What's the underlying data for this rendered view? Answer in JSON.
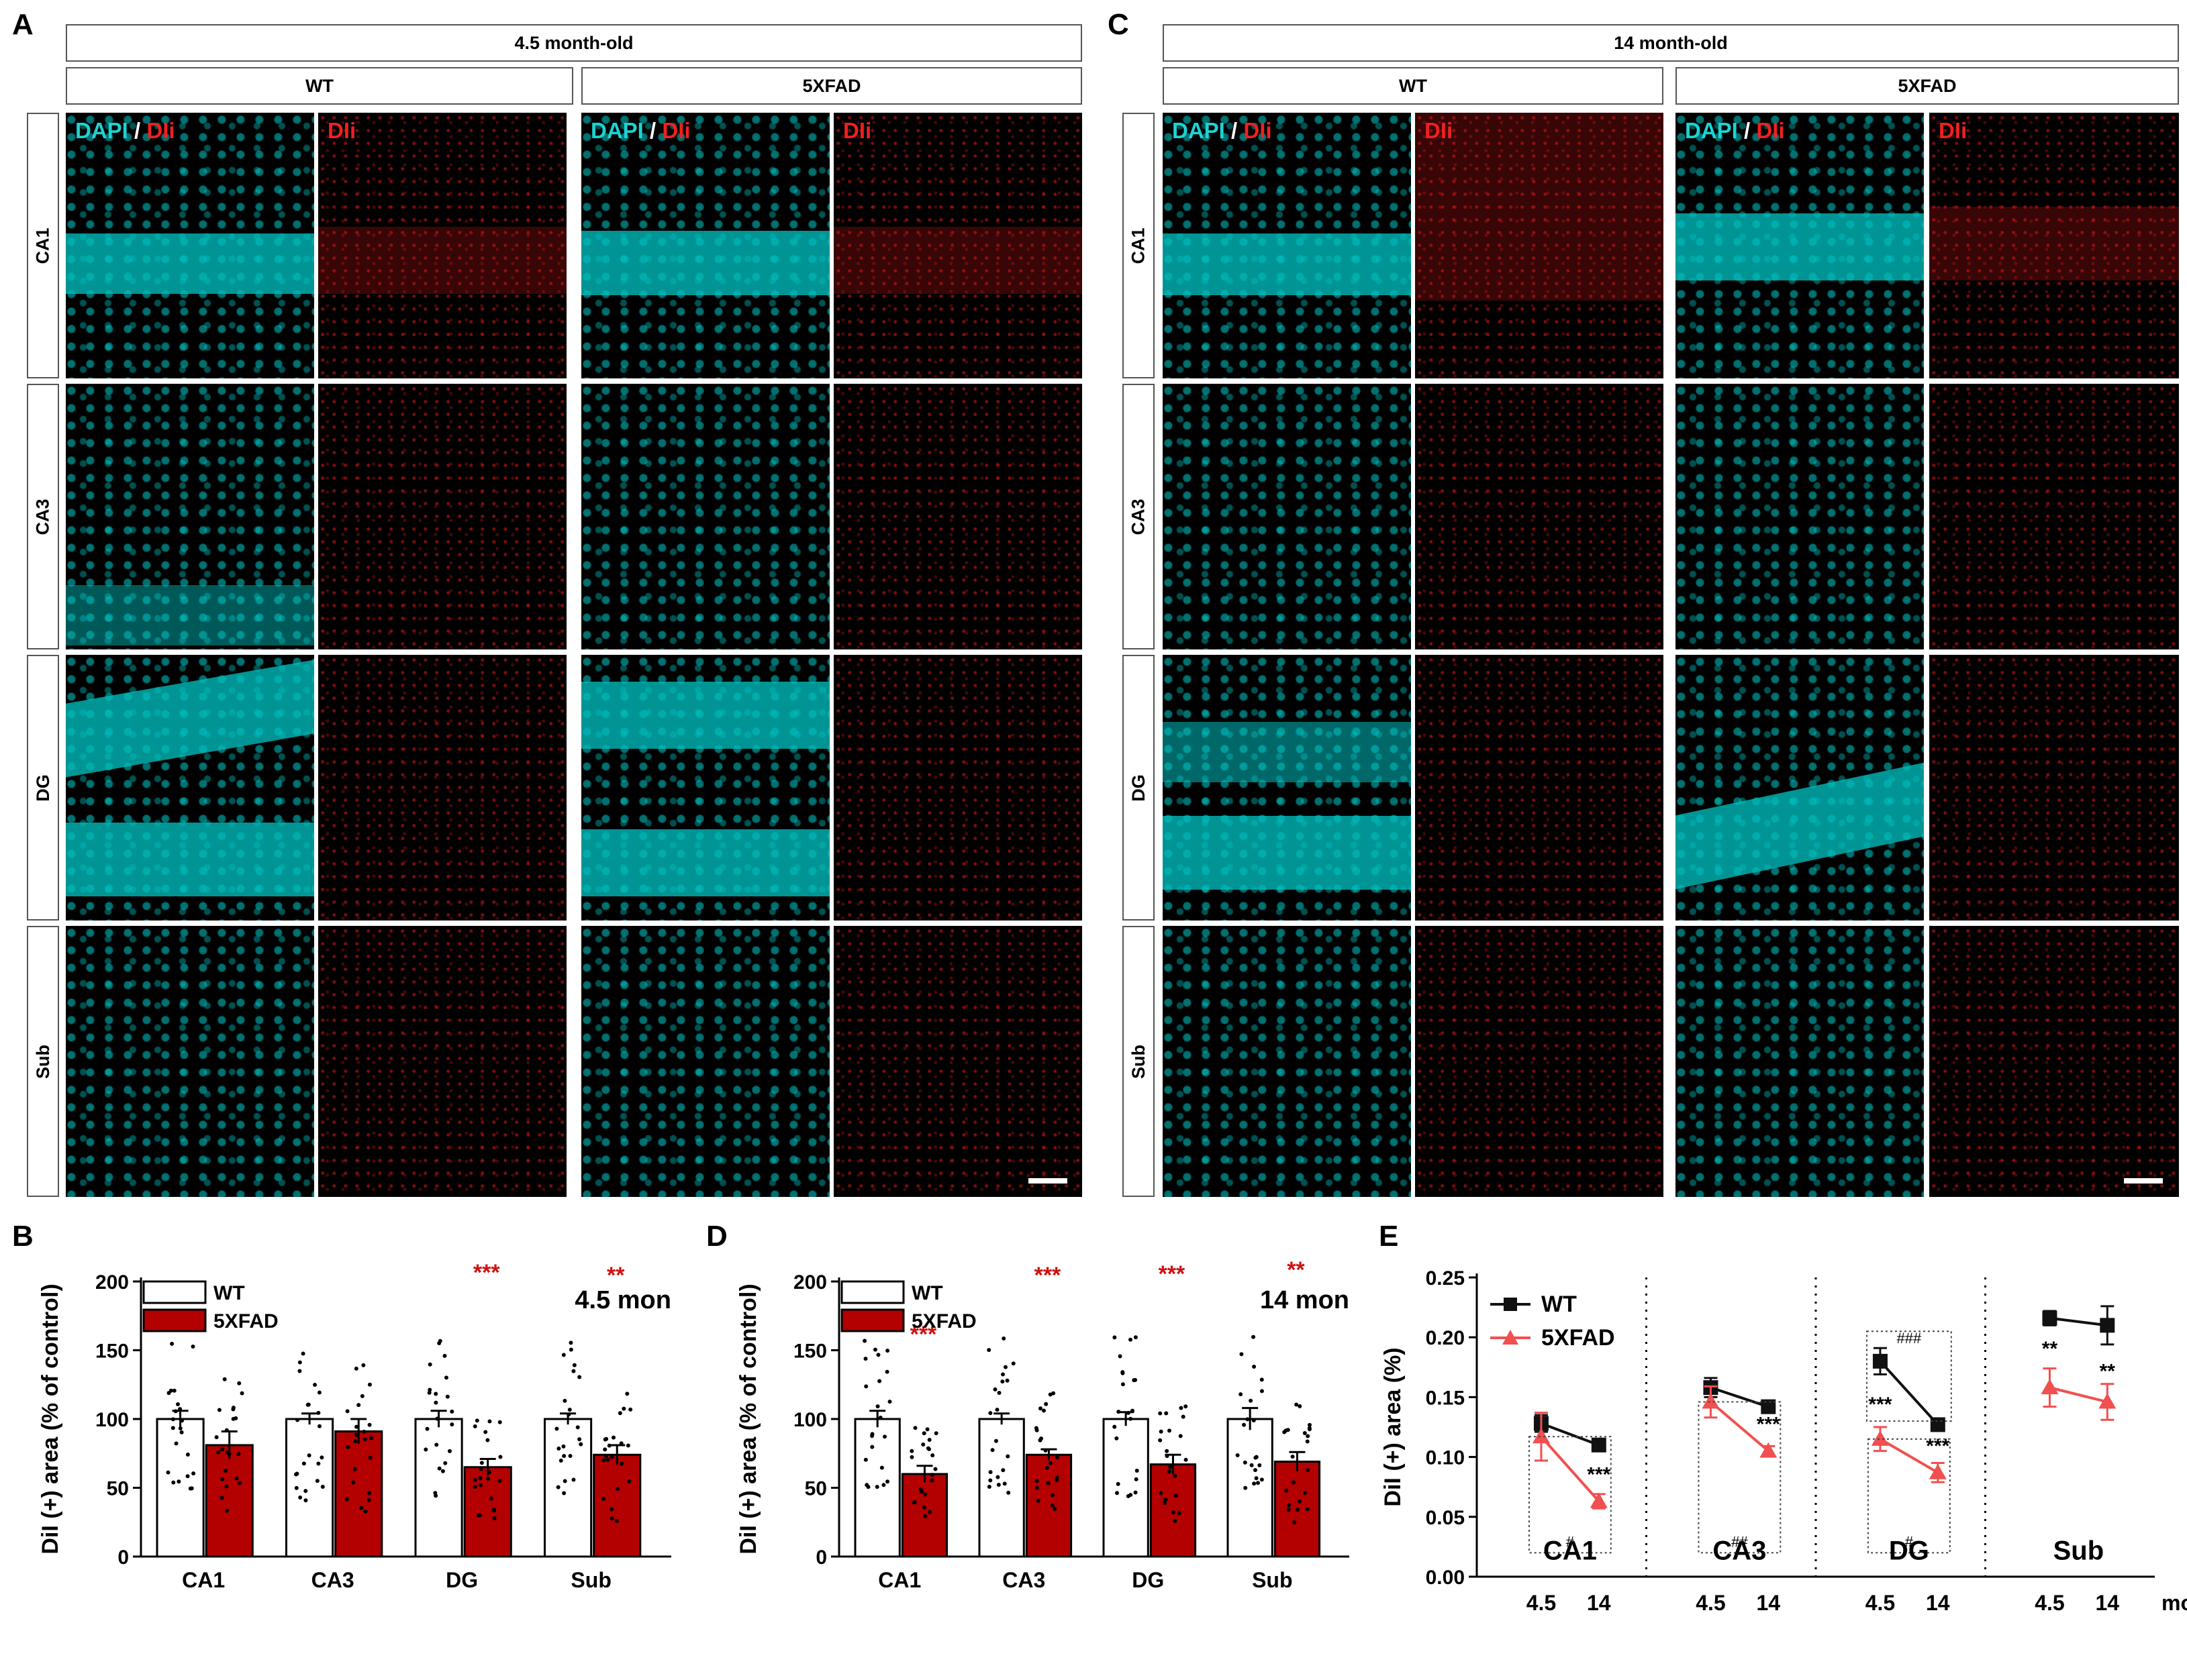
{
  "panels": {
    "A": "A",
    "B": "B",
    "C": "C",
    "D": "D",
    "E": "E"
  },
  "headers": {
    "left_age": "4.5 month-old",
    "right_age": "14 month-old",
    "wt": "WT",
    "fad": "5XFAD"
  },
  "regions": [
    "CA1",
    "CA3",
    "DG",
    "Sub"
  ],
  "channel_labels": {
    "dapi": "DAPI",
    "slash": "/",
    "dii": "DIi"
  },
  "colors": {
    "dapi": "#1dd3d3",
    "dii": "#f02020",
    "fad_bar": "#b30000",
    "fad_line": "#f05050",
    "star_red": "#d01010"
  },
  "chart_data": [
    {
      "panel": "B",
      "type": "bar",
      "title": "4.5 mon",
      "ylabel": "DiI (+) area (% of control)",
      "categories": [
        "CA1",
        "CA3",
        "DG",
        "Sub"
      ],
      "ylim": [
        0,
        200
      ],
      "yticks": [
        "0",
        "50",
        "100",
        "150",
        "200"
      ],
      "legend": [
        "WT",
        "5XFAD"
      ],
      "series": [
        {
          "name": "WT",
          "values": [
            100,
            100,
            100,
            100
          ],
          "errors": [
            6,
            4,
            6,
            4
          ]
        },
        {
          "name": "5XFAD",
          "values": [
            81,
            91,
            65,
            74
          ],
          "errors": [
            10,
            9,
            6,
            7
          ]
        }
      ],
      "significance": [
        "",
        "",
        "***",
        "**"
      ]
    },
    {
      "panel": "D",
      "type": "bar",
      "title": "14 mon",
      "ylabel": "DiI (+) area (% of control)",
      "categories": [
        "CA1",
        "CA3",
        "DG",
        "Sub"
      ],
      "ylim": [
        0,
        200
      ],
      "yticks": [
        "0",
        "50",
        "100",
        "150",
        "200"
      ],
      "legend": [
        "WT",
        "5XFAD"
      ],
      "series": [
        {
          "name": "WT",
          "values": [
            100,
            100,
            100,
            100
          ],
          "errors": [
            6,
            4,
            5,
            8
          ]
        },
        {
          "name": "5XFAD",
          "values": [
            60,
            74,
            67,
            69
          ],
          "errors": [
            6,
            4,
            7,
            7
          ]
        }
      ],
      "significance": [
        "***",
        "***",
        "***",
        "**"
      ]
    },
    {
      "panel": "E",
      "type": "line",
      "ylabel": "DiI (+) area (%)",
      "ylim": [
        0,
        0.25
      ],
      "yticks": [
        "0.00",
        "0.05",
        "0.10",
        "0.15",
        "0.20",
        "0.25"
      ],
      "xtick_labels": [
        "4.5",
        "14"
      ],
      "xunit": "mo",
      "legend": [
        "WT",
        "5XFAD"
      ],
      "groups": [
        {
          "region": "CA1",
          "WT": [
            0.128,
            0.11
          ],
          "WT_err": [
            0.007,
            0.005
          ],
          "5XFAD": [
            0.117,
            0.063
          ],
          "5XFAD_err": [
            0.02,
            0.006
          ],
          "stars": [
            "",
            "***"
          ],
          "hash": "#"
        },
        {
          "region": "CA3",
          "WT": [
            0.158,
            0.142
          ],
          "WT_err": [
            0.008,
            0.005
          ],
          "5XFAD": [
            0.146,
            0.105
          ],
          "5XFAD_err": [
            0.013,
            0.004
          ],
          "stars": [
            "",
            "***"
          ],
          "hash": "##"
        },
        {
          "region": "DG",
          "WT": [
            0.18,
            0.127
          ],
          "WT_err": [
            0.011,
            0.005
          ],
          "5XFAD": [
            0.115,
            0.087
          ],
          "5XFAD_err": [
            0.01,
            0.008
          ],
          "stars": [
            "***",
            "***"
          ],
          "hash": "#",
          "hash_top": "###"
        },
        {
          "region": "Sub",
          "WT": [
            0.216,
            0.21
          ],
          "WT_err": [
            0.006,
            0.016
          ],
          "5XFAD": [
            0.158,
            0.146
          ],
          "5XFAD_err": [
            0.016,
            0.015
          ],
          "stars": [
            "**",
            "**"
          ]
        }
      ]
    }
  ]
}
